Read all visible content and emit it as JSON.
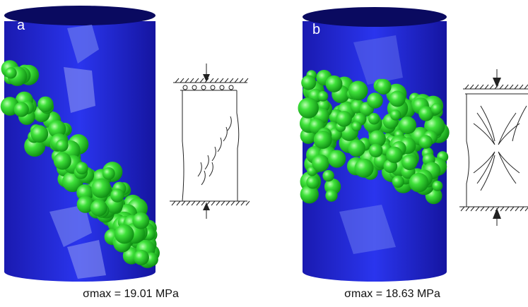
{
  "panels": [
    {
      "label": "a",
      "caption": "σmax = 19.01 MPa"
    },
    {
      "label": "b",
      "caption": "σmax = 18.63 MPa"
    }
  ]
}
